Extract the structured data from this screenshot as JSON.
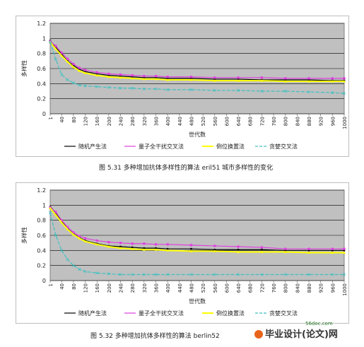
{
  "chart_data": [
    {
      "type": "line",
      "title": "",
      "xlabel": "世代数",
      "ylabel": "多样性",
      "ylim": [
        0,
        1.2
      ],
      "yticks": [
        0,
        0.2,
        0.4,
        0.6,
        0.8,
        1,
        1.2
      ],
      "xticks": [
        1,
        40,
        80,
        120,
        160,
        200,
        240,
        280,
        320,
        360,
        400,
        440,
        480,
        520,
        560,
        600,
        640,
        680,
        720,
        760,
        800,
        840,
        880,
        920,
        960,
        1000
      ],
      "x": [
        1,
        20,
        40,
        60,
        80,
        100,
        120,
        160,
        200,
        240,
        280,
        320,
        360,
        400,
        480,
        560,
        640,
        720,
        800,
        880,
        960,
        1000
      ],
      "series": [
        {
          "name": "随机产生法",
          "values": [
            0.97,
            0.88,
            0.79,
            0.7,
            0.64,
            0.59,
            0.56,
            0.53,
            0.51,
            0.5,
            0.49,
            0.48,
            0.48,
            0.47,
            0.47,
            0.46,
            0.46,
            0.45,
            0.45,
            0.45,
            0.44,
            0.44
          ],
          "color": "#000000"
        },
        {
          "name": "量子全干扰交叉法",
          "values": [
            0.96,
            0.9,
            0.81,
            0.73,
            0.66,
            0.61,
            0.58,
            0.55,
            0.53,
            0.52,
            0.51,
            0.5,
            0.5,
            0.49,
            0.49,
            0.48,
            0.48,
            0.48,
            0.47,
            0.47,
            0.47,
            0.47
          ],
          "color": "#e040e0"
        },
        {
          "name": "倒位换置法",
          "values": [
            0.95,
            0.86,
            0.77,
            0.69,
            0.62,
            0.57,
            0.54,
            0.51,
            0.49,
            0.48,
            0.47,
            0.46,
            0.46,
            0.45,
            0.45,
            0.44,
            0.44,
            0.44,
            0.43,
            0.43,
            0.43,
            0.43
          ],
          "color": "#ffff00"
        },
        {
          "name": "贪婪交叉法",
          "values": [
            0.95,
            0.72,
            0.52,
            0.45,
            0.41,
            0.38,
            0.37,
            0.36,
            0.35,
            0.34,
            0.34,
            0.33,
            0.33,
            0.32,
            0.32,
            0.31,
            0.31,
            0.3,
            0.3,
            0.29,
            0.28,
            0.27
          ],
          "color": "#40c0c0"
        }
      ],
      "legend": "bottom",
      "grid": true
    },
    {
      "type": "line",
      "title": "",
      "xlabel": "世代数",
      "ylabel": "多样性",
      "ylim": [
        0,
        1.2
      ],
      "yticks": [
        0,
        0.2,
        0.4,
        0.6,
        0.8,
        1,
        1.2
      ],
      "xticks": [
        1,
        40,
        80,
        120,
        160,
        200,
        240,
        280,
        320,
        360,
        400,
        440,
        480,
        520,
        560,
        600,
        640,
        680,
        720,
        760,
        800,
        840,
        880,
        920,
        960,
        1000
      ],
      "x": [
        1,
        20,
        40,
        60,
        80,
        100,
        120,
        160,
        200,
        240,
        280,
        320,
        360,
        400,
        480,
        560,
        640,
        720,
        800,
        880,
        960,
        1000
      ],
      "series": [
        {
          "name": "随机产生法",
          "values": [
            0.98,
            0.9,
            0.79,
            0.69,
            0.62,
            0.57,
            0.53,
            0.49,
            0.46,
            0.45,
            0.44,
            0.43,
            0.43,
            0.42,
            0.42,
            0.41,
            0.41,
            0.41,
            0.4,
            0.4,
            0.4,
            0.4
          ],
          "color": "#000000"
        },
        {
          "name": "量子全干扰交叉法",
          "values": [
            0.97,
            0.91,
            0.8,
            0.71,
            0.64,
            0.59,
            0.56,
            0.53,
            0.51,
            0.5,
            0.49,
            0.49,
            0.48,
            0.48,
            0.47,
            0.46,
            0.45,
            0.44,
            0.42,
            0.42,
            0.42,
            0.42
          ],
          "color": "#e040e0"
        },
        {
          "name": "倒位换置法",
          "values": [
            0.96,
            0.87,
            0.77,
            0.68,
            0.61,
            0.56,
            0.52,
            0.48,
            0.45,
            0.43,
            0.42,
            0.41,
            0.41,
            0.4,
            0.39,
            0.39,
            0.38,
            0.38,
            0.38,
            0.37,
            0.37,
            0.37
          ],
          "color": "#ffff00"
        },
        {
          "name": "贪婪交叉法",
          "values": [
            0.9,
            0.6,
            0.4,
            0.28,
            0.2,
            0.15,
            0.12,
            0.1,
            0.09,
            0.08,
            0.08,
            0.08,
            0.08,
            0.08,
            0.08,
            0.08,
            0.08,
            0.08,
            0.08,
            0.08,
            0.08,
            0.08
          ],
          "color": "#40c0c0"
        }
      ],
      "legend": "bottom",
      "grid": true
    }
  ],
  "captions": [
    "图 5.31 多种增加抗体多样性的算法 eril51 城市多样性的变化",
    "图 5.32 多种增加抗体多样性的算法 berlin52"
  ],
  "brand": {
    "text": "毕业设计(论文)网",
    "site": "56doc.com"
  }
}
